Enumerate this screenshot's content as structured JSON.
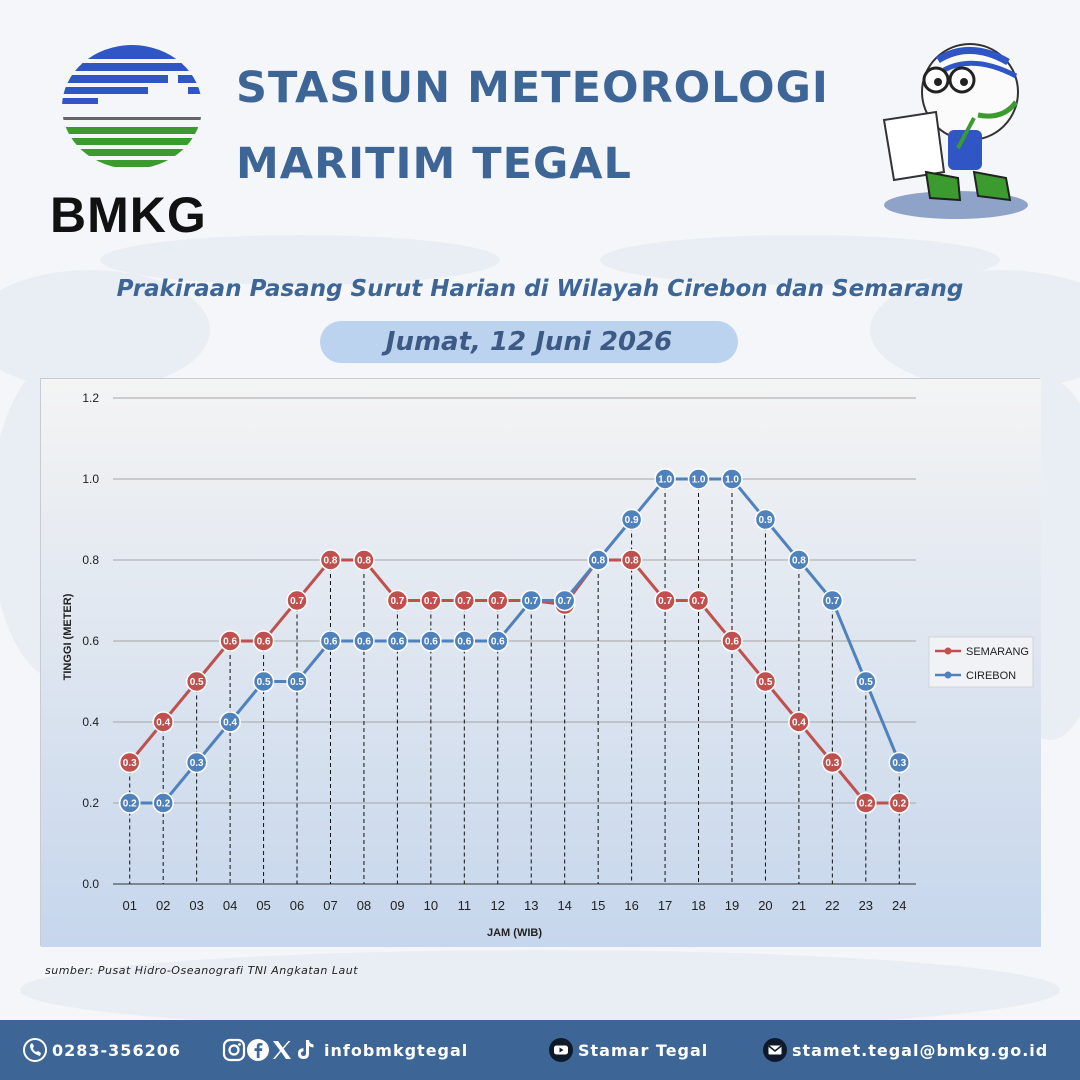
{
  "brand": {
    "logo_text": "BMKG"
  },
  "header": {
    "title_line1": "STASIUN METEOROLOGI",
    "title_line2": "MARITIM TEGAL"
  },
  "subtitle": "Prakiraan Pasang Surut Harian di Wilayah Cirebon dan Semarang",
  "date": "Jumat, 12 Juni 2026",
  "source": "sumber: Pusat Hidro-Oseanografi TNI Angkatan Laut",
  "footer": {
    "phone": "0283-356206",
    "social": "infobmkgtegal",
    "youtube": "Stamar Tegal",
    "email": "stamet.tegal@bmkg.go.id"
  },
  "colors": {
    "title": "#3d6596",
    "semarang": "#c0504d",
    "cirebon": "#4f81bd",
    "footer_bg": "#3d6596"
  },
  "chart_data": {
    "type": "line",
    "xlabel": "JAM (WIB)",
    "ylabel": "TINGGI (METER)",
    "ylim": [
      0,
      1.2
    ],
    "yticks": [
      "0.0",
      "0.2",
      "0.4",
      "0.6",
      "0.8",
      "1.0",
      "1.2"
    ],
    "grid": true,
    "legend_position": "right",
    "categories": [
      "01",
      "02",
      "03",
      "04",
      "05",
      "06",
      "07",
      "08",
      "09",
      "10",
      "11",
      "12",
      "13",
      "14",
      "15",
      "16",
      "17",
      "18",
      "19",
      "20",
      "21",
      "22",
      "23",
      "24"
    ],
    "series": [
      {
        "name": "SEMARANG",
        "color": "#c0504d",
        "values": [
          0.3,
          0.4,
          0.5,
          0.6,
          0.6,
          0.7,
          0.8,
          0.8,
          0.7,
          0.7,
          0.7,
          0.7,
          0.7,
          0.69,
          0.8,
          0.8,
          0.7,
          0.7,
          0.6,
          0.5,
          0.4,
          0.3,
          0.2,
          0.2
        ],
        "labels": [
          "0.3",
          "0.4",
          "0.5",
          "0.6",
          "0.6",
          "0.7",
          "0.8",
          "0.8",
          "0.7",
          "0.7",
          "0.7",
          "0.7",
          "",
          "",
          "",
          "0.8",
          "0.7",
          "0.7",
          "0.6",
          "0.5",
          "0.4",
          "0.3",
          "0.2",
          "0.2"
        ]
      },
      {
        "name": "CIREBON",
        "color": "#4f81bd",
        "values": [
          0.2,
          0.2,
          0.3,
          0.4,
          0.5,
          0.5,
          0.6,
          0.6,
          0.6,
          0.6,
          0.6,
          0.6,
          0.7,
          0.7,
          0.8,
          0.9,
          1.0,
          1.0,
          1.0,
          0.9,
          0.8,
          0.7,
          0.5,
          0.3
        ],
        "labels": [
          "0.2",
          "0.2",
          "0.3",
          "0.4",
          "0.5",
          "0.5",
          "0.6",
          "0.6",
          "0.6",
          "0.6",
          "0.6",
          "0.6",
          "0.7",
          "0.7",
          "0.8",
          "0.9",
          "1.0",
          "1.0",
          "1.0",
          "0.9",
          "0.8",
          "0.7",
          "0.5",
          "0.3"
        ]
      }
    ]
  }
}
